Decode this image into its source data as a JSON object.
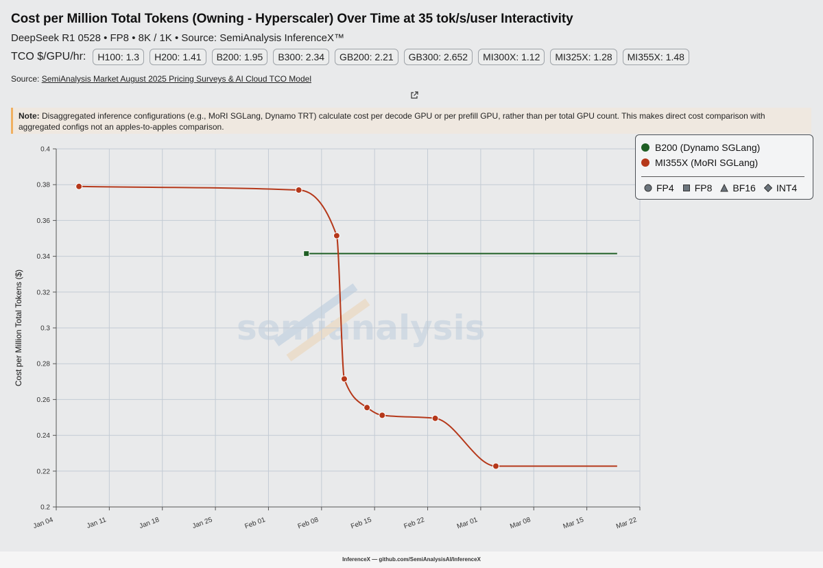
{
  "header": {
    "title": "Cost per Million Total Tokens (Owning - Hyperscaler) Over Time at 35 tok/s/user Interactivity",
    "subtitle": "DeepSeek R1 0528 • FP8 • 8K / 1K • Source: SemiAnalysis InferenceX™",
    "tco_label": "TCO $/GPU/hr:",
    "tco_chips": [
      "H100: 1.3",
      "H200: 1.41",
      "B200: 1.95",
      "B300: 2.34",
      "GB200: 2.21",
      "GB300: 2.652",
      "MI300X: 1.12",
      "MI325X: 1.28",
      "MI355X: 1.48"
    ],
    "source_prefix": "Source:",
    "source_link": "SemiAnalysis Market August 2025 Pricing Surveys & AI Cloud TCO Model"
  },
  "note": {
    "label": "Note:",
    "text": "Disaggregated inference configurations (e.g., MoRI SGLang, Dynamo TRT) calculate cost per decode GPU or per prefill GPU, rather than per total GPU count. This makes direct cost comparison with aggregated configs not an apples-to-apples comparison."
  },
  "legend": {
    "series": [
      {
        "label": "B200 (Dynamo SGLang)",
        "color": "#1e5e24"
      },
      {
        "label": "MI355X (MoRI SGLang)",
        "color": "#b5381a"
      }
    ],
    "shapes": [
      "FP4",
      "FP8",
      "BF16",
      "INT4"
    ]
  },
  "watermark": "semianalysis",
  "footer": "InferenceX — github.com/SemiAnalysisAI/InferenceX",
  "chart_data": {
    "type": "line",
    "title": "",
    "xlabel": "",
    "ylabel": "Cost per Million Total Tokens ($)",
    "ylim": [
      0.2,
      0.4
    ],
    "yticks": [
      0.2,
      0.22,
      0.24,
      0.26,
      0.28,
      0.3,
      0.32,
      0.34,
      0.36,
      0.38,
      0.4
    ],
    "xlim": [
      "2026-01-04",
      "2026-03-22"
    ],
    "xticks": [
      "Jan 04",
      "Jan 11",
      "Jan 18",
      "Jan 25",
      "Feb 01",
      "Feb 08",
      "Feb 15",
      "Feb 22",
      "Mar 01",
      "Mar 08",
      "Mar 15",
      "Mar 22"
    ],
    "grid": true,
    "legend_position": "top-right",
    "series": [
      {
        "name": "B200 (Dynamo SGLang)",
        "color": "#1e5e24",
        "marker": "square",
        "points": [
          {
            "x": "2026-02-06",
            "y": 0.3415
          }
        ],
        "line_to": {
          "x": "2026-03-19",
          "y": 0.3415
        }
      },
      {
        "name": "MI355X (MoRI SGLang)",
        "color": "#b5381a",
        "marker": "circle",
        "points": [
          {
            "x": "2026-01-07",
            "y": 0.379
          },
          {
            "x": "2026-02-05",
            "y": 0.377
          },
          {
            "x": "2026-02-10",
            "y": 0.3515
          },
          {
            "x": "2026-02-11",
            "y": 0.2715
          },
          {
            "x": "2026-02-14",
            "y": 0.2555
          },
          {
            "x": "2026-02-16",
            "y": 0.2512
          },
          {
            "x": "2026-02-23",
            "y": 0.2495
          },
          {
            "x": "2026-03-03",
            "y": 0.2228
          }
        ],
        "line_to": {
          "x": "2026-03-19",
          "y": 0.2228
        }
      }
    ]
  }
}
